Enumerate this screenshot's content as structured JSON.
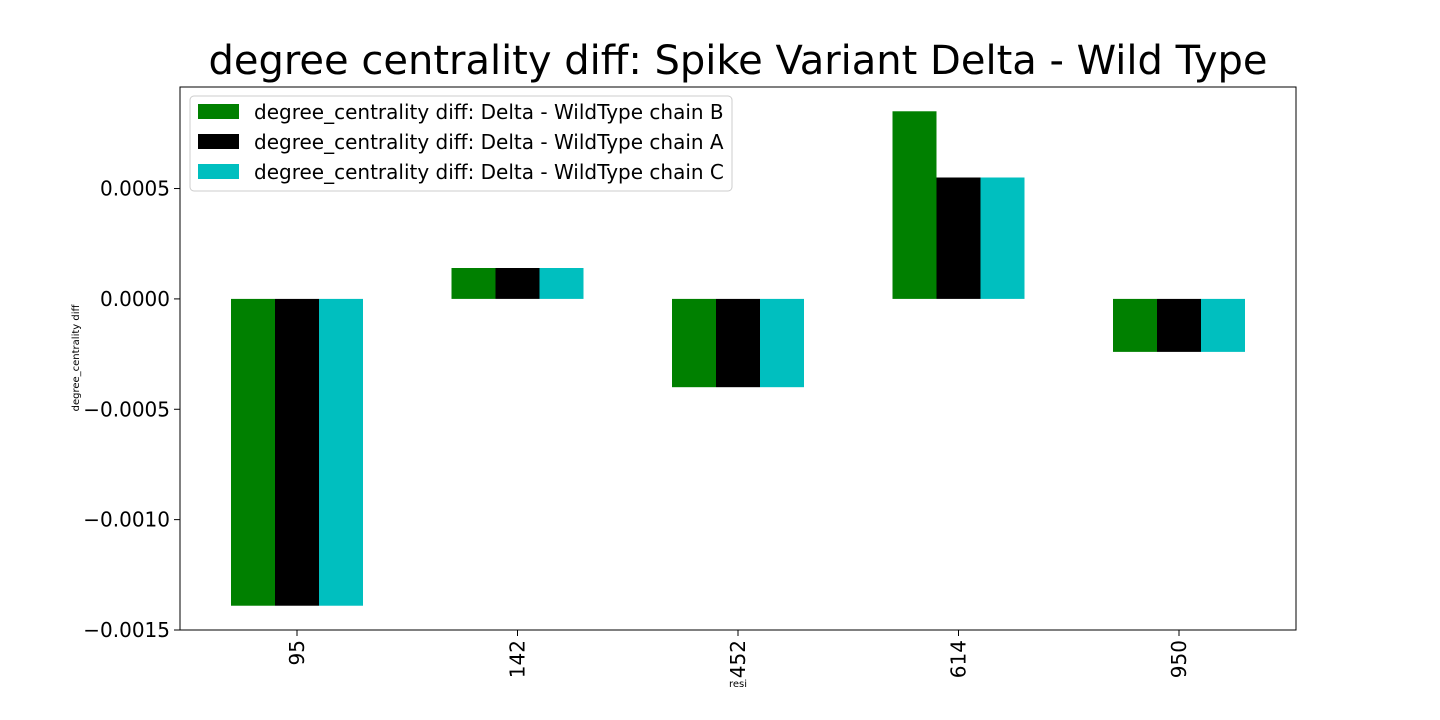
{
  "chart_data": {
    "type": "bar",
    "title": "degree centrality diff: Spike Variant Delta - Wild Type",
    "xlabel": "resi",
    "ylabel": "degree_centrality diff",
    "categories": [
      "95",
      "142",
      "452",
      "614",
      "950"
    ],
    "series": [
      {
        "name": "degree_centrality diff: Delta - WildType chain B",
        "color": "#008000",
        "values": [
          -0.00139,
          0.00014,
          -0.0004,
          0.00085,
          -0.00024
        ]
      },
      {
        "name": "degree_centrality diff: Delta - WildType chain A",
        "color": "#000000",
        "values": [
          -0.00139,
          0.00014,
          -0.0004,
          0.00055,
          -0.00024
        ]
      },
      {
        "name": "degree_centrality diff: Delta - WildType chain C",
        "color": "#00bfbf",
        "values": [
          -0.00139,
          0.00014,
          -0.0004,
          0.00055,
          -0.00024
        ]
      }
    ],
    "ylim": [
      -0.0015,
      0.00096
    ],
    "yticks": [
      {
        "value": 0.0005,
        "label": "0.0005"
      },
      {
        "value": 0.0,
        "label": "0.0000"
      },
      {
        "value": -0.0005,
        "label": "−0.0005"
      },
      {
        "value": -0.001,
        "label": "−0.0010"
      },
      {
        "value": -0.0015,
        "label": "−0.0015"
      }
    ],
    "grid": false,
    "legend_position": "top-left"
  }
}
